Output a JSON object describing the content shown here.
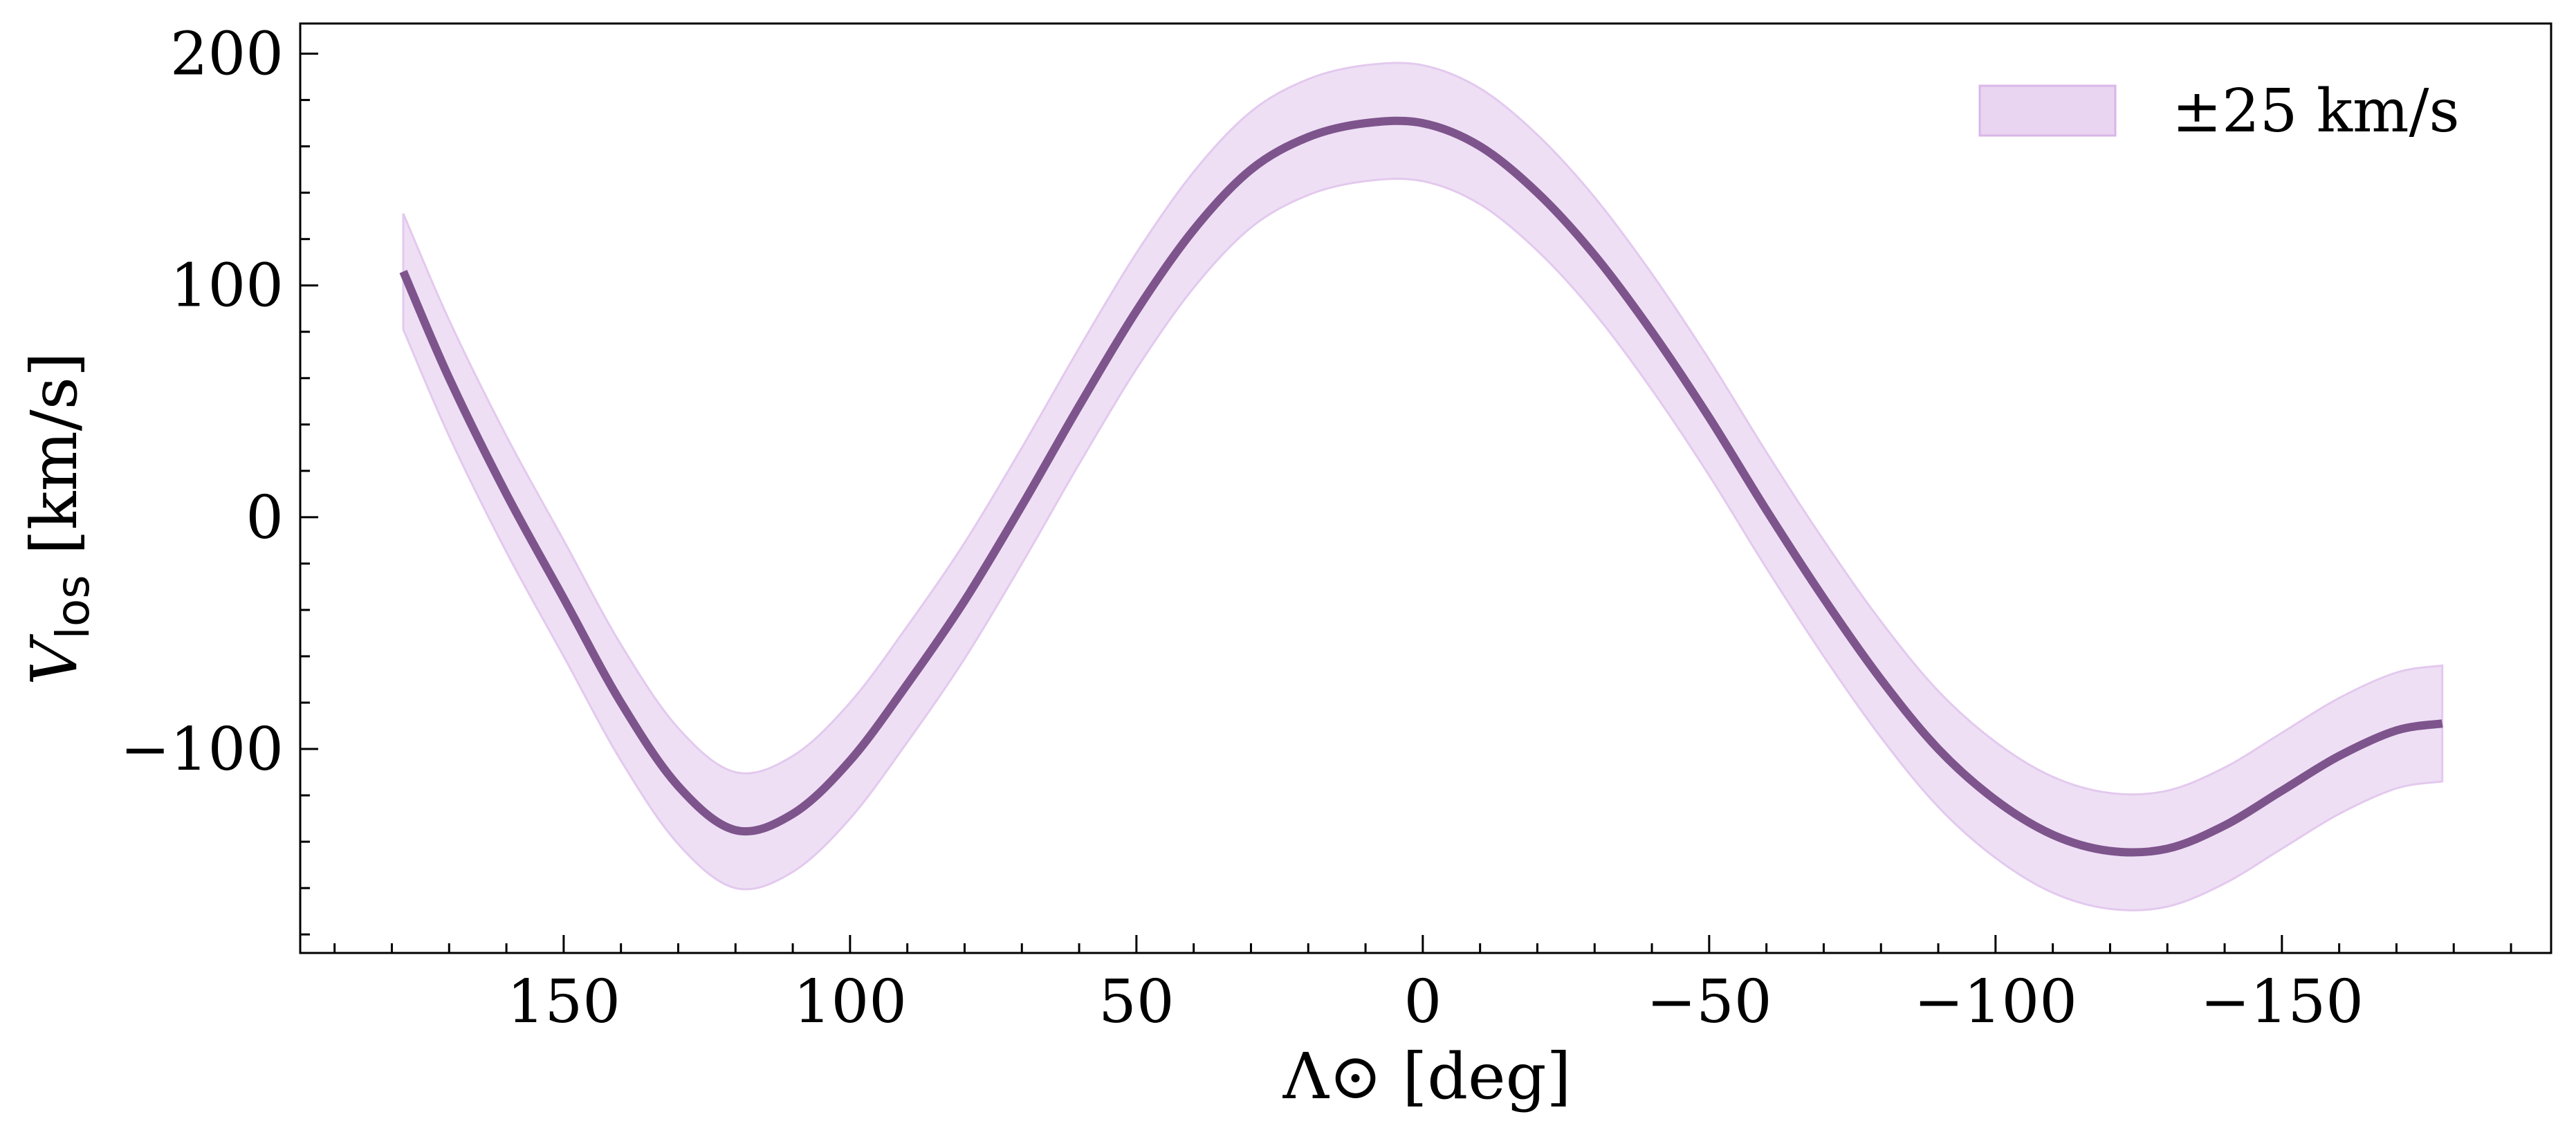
{
  "chart_data": {
    "type": "line",
    "xlabel": "Λ⊙ [deg]",
    "ylabel_main": "V",
    "ylabel_sub": "los",
    "ylabel_tail": " [km/s]",
    "xlim": [
      196,
      -197
    ],
    "ylim": [
      -188,
      213
    ],
    "x_ticks": [
      150,
      100,
      50,
      0,
      -50,
      -100,
      -150
    ],
    "x_tick_labels": [
      "150",
      "100",
      "50",
      "0",
      "−50",
      "−100",
      "−150"
    ],
    "x_minor_step": 10,
    "y_ticks": [
      -100,
      0,
      100,
      200
    ],
    "y_tick_labels": [
      "−100",
      "0",
      "100",
      "200"
    ],
    "y_minor_step": 20,
    "grid": false,
    "series": [
      {
        "kind": "line",
        "color": "#7e548c",
        "x": [
          178,
          170,
          160,
          150,
          140,
          130,
          120,
          110,
          100,
          90,
          80,
          70,
          60,
          50,
          40,
          30,
          20,
          10,
          0,
          -10,
          -20,
          -30,
          -40,
          -50,
          -60,
          -70,
          -80,
          -90,
          -100,
          -110,
          -120,
          -130,
          -140,
          -150,
          -160,
          -170,
          -178
        ],
        "y": [
          106,
          60,
          10,
          -35,
          -80,
          -116,
          -135,
          -128,
          -105,
          -72,
          -36,
          5,
          48,
          89,
          124,
          150,
          164,
          170,
          170,
          160,
          140,
          113,
          80,
          43,
          3,
          -35,
          -70,
          -100,
          -122,
          -137,
          -144,
          -143,
          -133,
          -118,
          -103,
          -92,
          -89
        ]
      },
      {
        "kind": "band",
        "name": "±25 km/s",
        "color": "#e3c9ee",
        "offset": 25
      }
    ],
    "legend_position": "top-right"
  }
}
